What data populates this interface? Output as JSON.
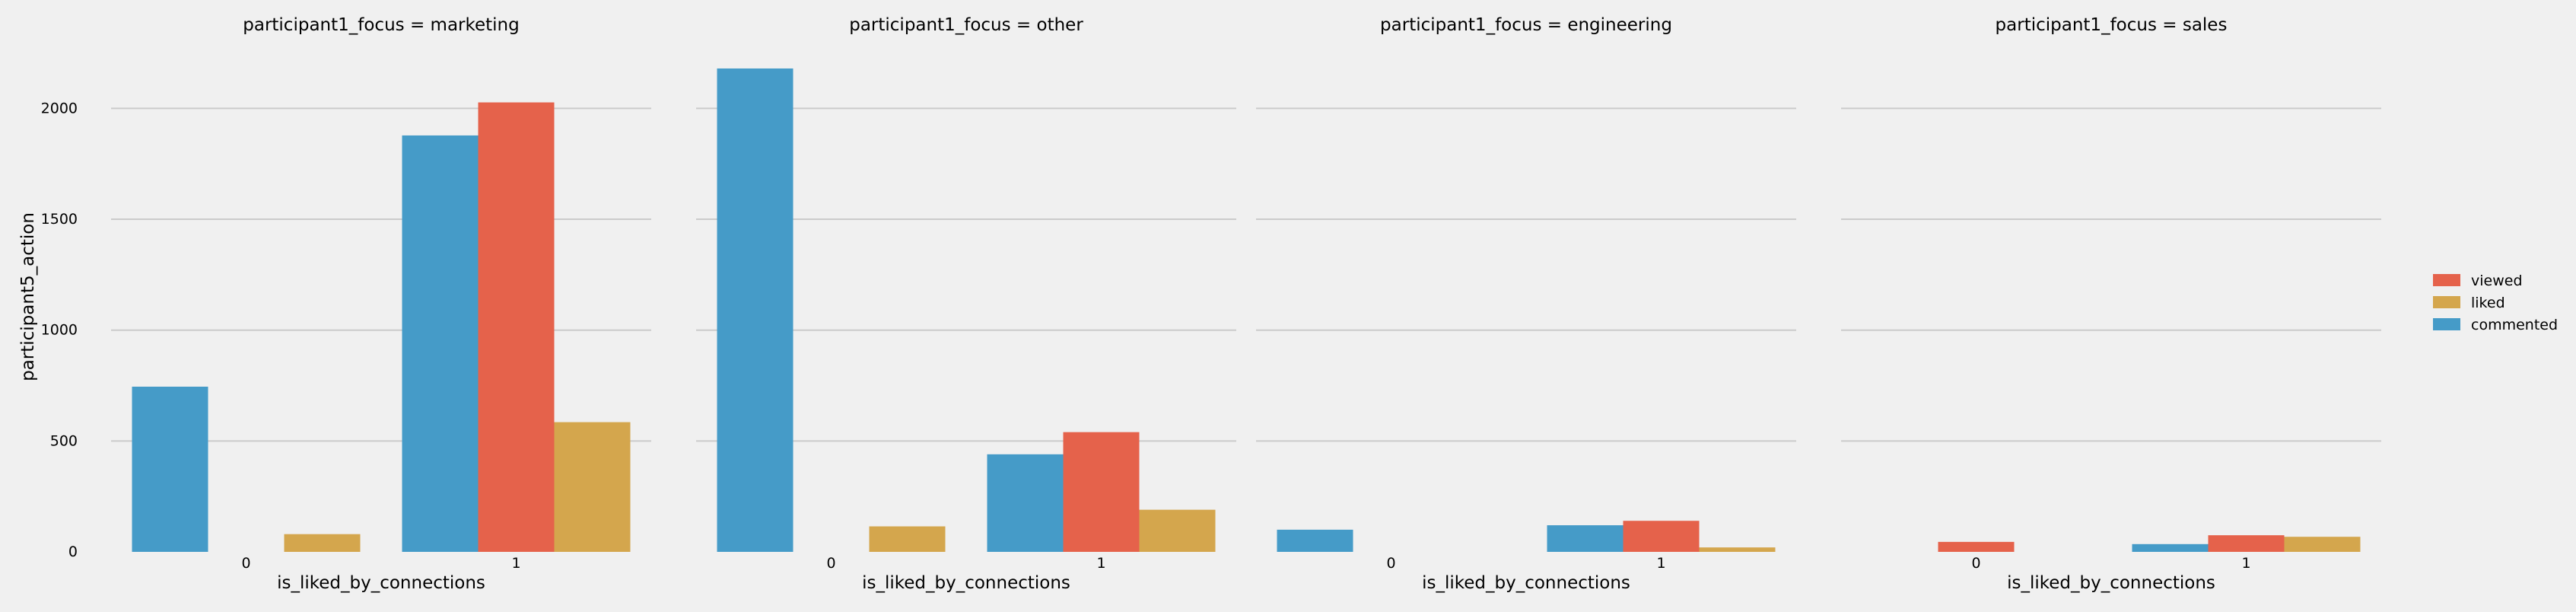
{
  "chart_data": {
    "type": "bar",
    "ylabel": "participant5_action",
    "ylim": [
      0,
      2300
    ],
    "yticks": [
      0,
      500,
      1000,
      1500,
      2000
    ],
    "grid": true,
    "legend_placement": "right",
    "hue_order": [
      "commented",
      "viewed",
      "liked"
    ],
    "legend_order": [
      "viewed",
      "liked",
      "commented"
    ],
    "colors": {
      "commented": "#459bc8",
      "viewed": "#e5624b",
      "liked": "#d4a64d"
    },
    "background": "#f0f0f0",
    "grid_color": "#cbcbcb",
    "panels": [
      {
        "title": "participant1_focus = marketing",
        "xlabel": "is_liked_by_connections",
        "categories": [
          "0",
          "1"
        ],
        "series": [
          {
            "name": "commented",
            "values": [
              745,
              1878
            ]
          },
          {
            "name": "viewed",
            "values": [
              0,
              2027
            ]
          },
          {
            "name": "liked",
            "values": [
              80,
              585
            ]
          }
        ]
      },
      {
        "title": "participant1_focus = other",
        "xlabel": "is_liked_by_connections",
        "categories": [
          "0",
          "1"
        ],
        "series": [
          {
            "name": "commented",
            "values": [
              2180,
              440
            ]
          },
          {
            "name": "viewed",
            "values": [
              0,
              540
            ]
          },
          {
            "name": "liked",
            "values": [
              115,
              190
            ]
          }
        ]
      },
      {
        "title": "participant1_focus = engineering",
        "xlabel": "is_liked_by_connections",
        "categories": [
          "0",
          "1"
        ],
        "series": [
          {
            "name": "commented",
            "values": [
              100,
              120
            ]
          },
          {
            "name": "viewed",
            "values": [
              0,
              140
            ]
          },
          {
            "name": "liked",
            "values": [
              0,
              20
            ]
          }
        ]
      },
      {
        "title": "participant1_focus = sales",
        "xlabel": "is_liked_by_connections",
        "categories": [
          "0",
          "1"
        ],
        "series": [
          {
            "name": "commented",
            "values": [
              0,
              35
            ]
          },
          {
            "name": "viewed",
            "values": [
              45,
              75
            ]
          },
          {
            "name": "liked",
            "values": [
              0,
              68
            ]
          }
        ]
      }
    ]
  }
}
